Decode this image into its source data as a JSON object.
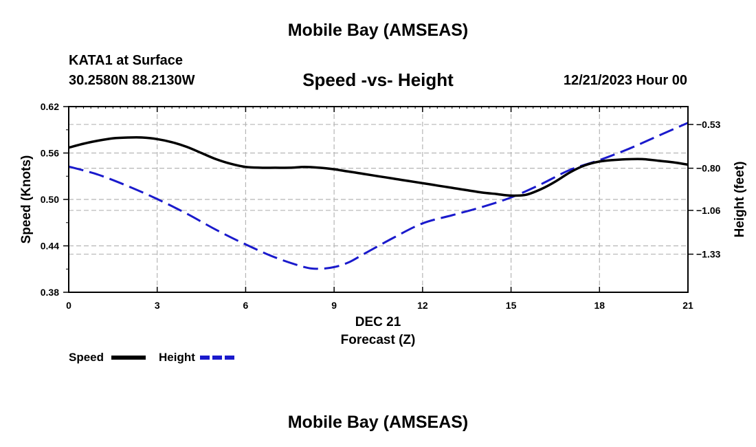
{
  "header": {
    "title": "Mobile Bay (AMSEAS)",
    "station": "KATA1 at Surface",
    "coordinates": "30.2580N  88.2130W",
    "datetime": "12/21/2023 Hour 00"
  },
  "footer": {
    "title": "Mobile Bay (AMSEAS)"
  },
  "colors": {
    "speed": "#000000",
    "height": "#1a1acc",
    "grid": "#b5b5b5"
  },
  "chart_data": {
    "type": "line",
    "title": "Speed -vs- Height",
    "xlabel": "Forecast (Z)",
    "xlabel_date": "DEC 21",
    "ylabel": "Speed (Knots)",
    "ylabel_right": "Height (feet)",
    "xlim": [
      0,
      21
    ],
    "ylim": [
      0.38,
      0.62
    ],
    "ylim_right": [
      -1.565,
      -0.42
    ],
    "x_ticks": [
      0,
      3,
      6,
      9,
      12,
      15,
      18,
      21
    ],
    "x_tick_labels": [
      "0",
      "3",
      "6",
      "9",
      "12",
      "15",
      "18",
      "21"
    ],
    "y_ticks": [
      0.38,
      0.44,
      0.5,
      0.56,
      0.62
    ],
    "y_tick_labels": [
      "0.38",
      "0.44",
      "0.50",
      "0.56",
      "0.62"
    ],
    "y_right_ticks": [
      -0.53,
      -0.8,
      -1.06,
      -1.33
    ],
    "y_right_tick_labels": [
      "-0.53",
      "-0.80",
      "-1.06",
      "-1.33"
    ],
    "grid": true,
    "legend_position": "bottom-left",
    "series": [
      {
        "name": "Speed",
        "axis": "left",
        "style": "solid",
        "x": [
          0,
          0.5,
          1,
          1.5,
          2,
          2.5,
          3,
          3.5,
          4,
          4.5,
          5,
          5.5,
          6,
          6.5,
          7,
          7.5,
          8,
          8.5,
          9,
          9.5,
          10,
          10.5,
          11,
          11.5,
          12,
          12.5,
          13,
          13.5,
          14,
          14.5,
          15,
          15.5,
          16,
          16.5,
          17,
          17.5,
          18,
          18.5,
          19,
          19.5,
          20,
          20.5,
          21
        ],
        "values": [
          0.567,
          0.572,
          0.576,
          0.579,
          0.58,
          0.58,
          0.578,
          0.574,
          0.568,
          0.56,
          0.552,
          0.546,
          0.542,
          0.541,
          0.541,
          0.541,
          0.542,
          0.541,
          0.539,
          0.536,
          0.533,
          0.53,
          0.527,
          0.524,
          0.521,
          0.518,
          0.515,
          0.512,
          0.509,
          0.507,
          0.505,
          0.506,
          0.513,
          0.523,
          0.535,
          0.544,
          0.549,
          0.551,
          0.552,
          0.552,
          0.55,
          0.548,
          0.545
        ]
      },
      {
        "name": "Height",
        "axis": "right",
        "style": "dashed",
        "x": [
          0,
          1,
          2,
          3,
          4,
          5,
          6,
          7,
          8,
          8.5,
          9,
          9.5,
          10,
          11,
          12,
          13,
          14,
          15,
          16,
          17,
          18,
          19,
          20,
          21
        ],
        "values": [
          -0.79,
          -0.84,
          -0.91,
          -0.99,
          -1.08,
          -1.18,
          -1.27,
          -1.35,
          -1.41,
          -1.42,
          -1.41,
          -1.38,
          -1.33,
          -1.23,
          -1.14,
          -1.09,
          -1.04,
          -0.98,
          -0.9,
          -0.81,
          -0.75,
          -0.68,
          -0.6,
          -0.52
        ]
      }
    ]
  }
}
